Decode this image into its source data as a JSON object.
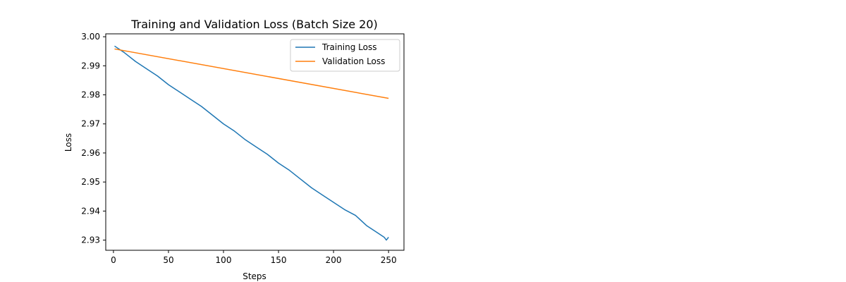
{
  "chart_data": {
    "type": "line",
    "title": "Training and Validation Loss (Batch Size 20)",
    "xlabel": "Steps",
    "ylabel": "Loss",
    "xlim": [
      -7,
      264
    ],
    "ylim": [
      2.9265,
      3.001
    ],
    "xticks": [
      0,
      50,
      100,
      150,
      200,
      250
    ],
    "xtick_labels": [
      "0",
      "50",
      "100",
      "150",
      "200",
      "250"
    ],
    "yticks": [
      2.93,
      2.94,
      2.95,
      2.96,
      2.97,
      2.98,
      2.99,
      3.0
    ],
    "ytick_labels": [
      "2.93",
      "2.94",
      "2.95",
      "2.96",
      "2.97",
      "2.98",
      "2.99",
      "3.00"
    ],
    "grid": false,
    "legend_position": "top-right",
    "series": [
      {
        "name": "Training Loss",
        "color": "#1f77b4",
        "x": [
          1,
          10,
          20,
          30,
          40,
          50,
          60,
          70,
          80,
          90,
          100,
          110,
          120,
          130,
          140,
          150,
          160,
          170,
          180,
          190,
          200,
          210,
          220,
          230,
          240,
          246,
          248,
          250
        ],
        "y": [
          2.9968,
          2.9945,
          2.9915,
          2.989,
          2.9865,
          2.9835,
          2.981,
          2.9785,
          2.976,
          2.973,
          2.97,
          2.9675,
          2.9645,
          2.962,
          2.9595,
          2.9565,
          2.954,
          2.951,
          2.948,
          2.9455,
          2.943,
          2.9405,
          2.9385,
          2.935,
          2.9325,
          2.931,
          2.93,
          2.931
        ]
      },
      {
        "name": "Validation Loss",
        "color": "#ff7f0e",
        "x": [
          1,
          250
        ],
        "y": [
          2.9958,
          2.9788
        ]
      }
    ]
  }
}
